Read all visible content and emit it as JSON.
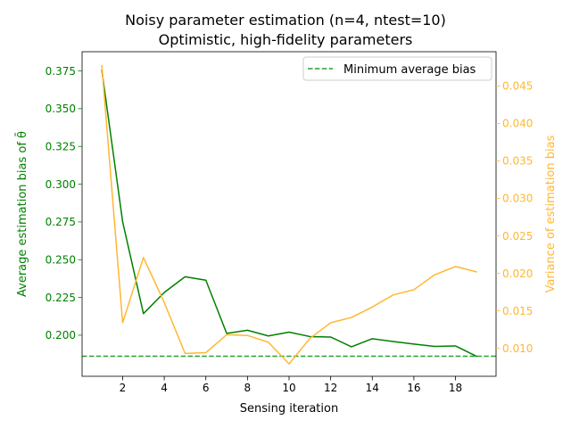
{
  "chart_data": {
    "type": "line",
    "title_line1": "Noisy parameter estimation (n=4, ntest=10)",
    "title_line2": "Optimistic, high-fidelity parameters",
    "xlabel": "Sensing iteration",
    "ylabel_left": "Average estimation bias of θ̄",
    "ylabel_right": "Variance of estimation bias",
    "xlim": [
      0.05,
      19.95
    ],
    "ylim_left": [
      0.1728,
      0.3877
    ],
    "ylim_right": [
      0.00625,
      0.04957
    ],
    "x_ticks": [
      "2",
      "4",
      "6",
      "8",
      "10",
      "12",
      "14",
      "16",
      "18"
    ],
    "x_tick_values": [
      2,
      4,
      6,
      8,
      10,
      12,
      14,
      16,
      18
    ],
    "y_ticks_left": [
      "0.200",
      "0.225",
      "0.250",
      "0.275",
      "0.300",
      "0.325",
      "0.350",
      "0.375"
    ],
    "y_tick_values_left": [
      0.2,
      0.225,
      0.25,
      0.275,
      0.3,
      0.325,
      0.35,
      0.375
    ],
    "y_ticks_right": [
      "0.010",
      "0.015",
      "0.020",
      "0.025",
      "0.030",
      "0.035",
      "0.040",
      "0.045"
    ],
    "y_tick_values_right": [
      0.01,
      0.015,
      0.02,
      0.025,
      0.03,
      0.035,
      0.04,
      0.045
    ],
    "x": [
      1,
      2,
      3,
      4,
      5,
      6,
      7,
      8,
      9,
      10,
      11,
      12,
      13,
      14,
      15,
      16,
      17,
      18,
      19
    ],
    "series": [
      {
        "axis": "left",
        "color": "#008000",
        "values": [
          0.3753,
          0.2751,
          0.2143,
          0.2283,
          0.2387,
          0.2364,
          0.2012,
          0.2033,
          0.1995,
          0.202,
          0.1991,
          0.1988,
          0.1923,
          0.1977,
          0.1958,
          0.1941,
          0.1926,
          0.1929,
          0.1861
        ]
      },
      {
        "axis": "right",
        "color": "#FFB732",
        "values": [
          0.0477,
          0.0134,
          0.0221,
          0.0161,
          0.0093,
          0.0094,
          0.0118,
          0.0117,
          0.0108,
          0.0079,
          0.0113,
          0.0134,
          0.0141,
          0.0155,
          0.0171,
          0.0178,
          0.0198,
          0.0209,
          0.0202
        ]
      }
    ],
    "reference_line": {
      "label": "Minimum average bias",
      "axis": "left",
      "value": 0.1861,
      "style": "dashed",
      "color": "#2ca02c"
    },
    "legend_position": "upper right",
    "grid": false,
    "left_axis_color": "#008000",
    "right_axis_color": "#FFB732"
  }
}
